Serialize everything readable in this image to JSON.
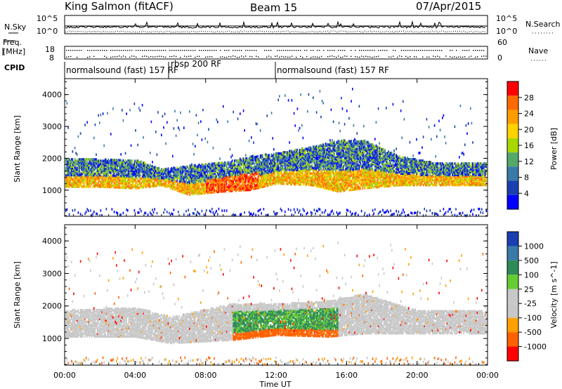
{
  "header": {
    "station": "King Salmon (fitACF)",
    "beam": "Beam 15",
    "date": "07/Apr/2015"
  },
  "strip_labels": {
    "nsky": "N.Sky",
    "nsearch": "N.Search",
    "freq_line1": "Freq.",
    "freq_line2": "[MHz]",
    "nave": "Nave",
    "cpid": "CPID",
    "noise_ticks": [
      "10^5",
      "10^0"
    ],
    "freq_ticks": [
      "18",
      "8"
    ],
    "nave_ticks": [
      "60",
      "0"
    ]
  },
  "modes": [
    {
      "text": "normalsound (fast) 157 RF",
      "start": 0.0
    },
    {
      "text": "rbsp 200 RF",
      "start": 5.8
    },
    {
      "text": "normalsound (fast) 157 RF",
      "start": 12.0
    }
  ],
  "chart_data": [
    {
      "type": "heatmap",
      "name": "power",
      "ylabel": "Slant Range [km]",
      "ylim": [
        180,
        4500
      ],
      "yticks": [
        1000,
        2000,
        3000,
        4000
      ],
      "xlim": [
        0,
        24
      ],
      "colorbar": {
        "label": "Power [dB]",
        "ticks": [
          "28",
          "24",
          "20",
          "16",
          "12",
          "8",
          "4"
        ],
        "colors": [
          "#ff0000",
          "#ff6a00",
          "#ff9c00",
          "#ffd200",
          "#a8d800",
          "#55a868",
          "#3a7aa8",
          "#1a3fb0",
          "#0000ff"
        ]
      },
      "echo_bands": [
        {
          "t": 0.0,
          "lo": 1150,
          "hi": 2050
        },
        {
          "t": 2.0,
          "lo": 1150,
          "hi": 2000
        },
        {
          "t": 4.0,
          "lo": 1100,
          "hi": 2000
        },
        {
          "t": 5.5,
          "lo": 1200,
          "hi": 1700
        },
        {
          "t": 7.0,
          "lo": 900,
          "hi": 1800
        },
        {
          "t": 9.0,
          "lo": 1000,
          "hi": 1900
        },
        {
          "t": 10.5,
          "lo": 1050,
          "hi": 2100
        },
        {
          "t": 12.0,
          "lo": 1250,
          "hi": 2200
        },
        {
          "t": 14.0,
          "lo": 1200,
          "hi": 2400
        },
        {
          "t": 15.5,
          "lo": 1000,
          "hi": 2600
        },
        {
          "t": 17.0,
          "lo": 1100,
          "hi": 2600
        },
        {
          "t": 19.0,
          "lo": 1200,
          "hi": 2100
        },
        {
          "t": 21.0,
          "lo": 1200,
          "hi": 1900
        },
        {
          "t": 24.0,
          "lo": 1200,
          "hi": 1900
        }
      ]
    },
    {
      "type": "heatmap",
      "name": "velocity",
      "ylabel": "Slant Range [km]",
      "ylim": [
        180,
        4500
      ],
      "yticks": [
        1000,
        2000,
        3000,
        4000
      ],
      "xlim": [
        0,
        24
      ],
      "colorbar": {
        "label": "Velocity [m s^-1]",
        "ticks": [
          "1000",
          "500",
          "100",
          "25",
          "-25",
          "-100",
          "-500",
          "-1000"
        ],
        "colors": [
          "#1a3fb0",
          "#3a7aa8",
          "#2e8b57",
          "#66cc33",
          "#c8c8c8",
          "#c8c8c8",
          "#ffa000",
          "#ff6000",
          "#ff0000"
        ]
      },
      "echo_bands": [
        {
          "t": 0.0,
          "lo": 1100,
          "hi": 1900
        },
        {
          "t": 4.0,
          "lo": 1100,
          "hi": 2000
        },
        {
          "t": 6.0,
          "lo": 900,
          "hi": 1700
        },
        {
          "t": 9.5,
          "lo": 1000,
          "hi": 2100
        },
        {
          "t": 12.0,
          "lo": 1150,
          "hi": 2100
        },
        {
          "t": 15.0,
          "lo": 1100,
          "hi": 2200
        },
        {
          "t": 17.0,
          "lo": 1200,
          "hi": 2400
        },
        {
          "t": 20.0,
          "lo": 1200,
          "hi": 1900
        },
        {
          "t": 24.0,
          "lo": 1200,
          "hi": 1900
        }
      ]
    }
  ],
  "xaxis": {
    "label": "Time UT",
    "ticks": [
      "00:00",
      "04:00",
      "08:00",
      "12:00",
      "16:00",
      "20:00",
      "00:00"
    ],
    "xlim": [
      0,
      24
    ]
  }
}
